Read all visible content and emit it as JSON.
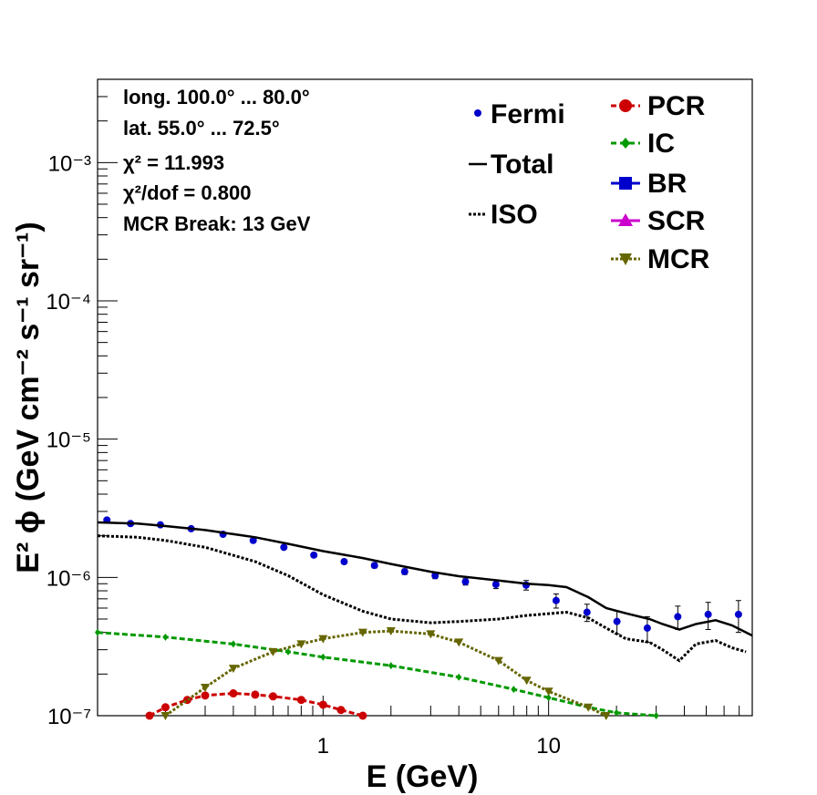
{
  "chart_data": {
    "type": "scatter",
    "xlabel": "E (GeV)",
    "ylabel": "E² ϕ (GeV cm⁻² s⁻¹ sr⁻¹)",
    "xscale": "log",
    "yscale": "log",
    "xlim": [
      0.1,
      80
    ],
    "ylim": [
      1e-07,
      0.004
    ],
    "x_tick_labels": [
      "1",
      "10"
    ],
    "y_tick_labels": [
      "10⁻⁷",
      "10⁻⁶",
      "10⁻⁵",
      "10⁻⁴",
      "10⁻³"
    ],
    "y_tick_values": [
      1e-07,
      1e-06,
      1e-05,
      0.0001,
      0.001
    ],
    "info_lines": [
      "long. 100.0° ... 80.0°",
      "lat. 55.0° ... 72.5°",
      "χ² = 11.993",
      "χ²/dof = 0.800",
      "MCR Break: 13 GeV"
    ],
    "legend_left": [
      {
        "label": "Fermi",
        "color": "#0000cc",
        "style": "point"
      },
      {
        "label": "Total",
        "color": "#000000",
        "style": "solid"
      },
      {
        "label": "ISO",
        "color": "#000000",
        "style": "dotted"
      }
    ],
    "legend_right": [
      {
        "label": "PCR",
        "color": "#cc0000",
        "style": "circle"
      },
      {
        "label": "IC",
        "color": "#009900",
        "style": "diamond"
      },
      {
        "label": "BR",
        "color": "#0000cc",
        "style": "square"
      },
      {
        "label": "SCR",
        "color": "#cc00cc",
        "style": "triangle-up"
      },
      {
        "label": "MCR",
        "color": "#666600",
        "style": "triangle-down"
      }
    ],
    "series": [
      {
        "name": "Fermi",
        "color": "#0000cc",
        "style": "points",
        "x": [
          0.11,
          0.14,
          0.19,
          0.26,
          0.36,
          0.49,
          0.67,
          0.91,
          1.24,
          1.69,
          2.3,
          3.14,
          4.28,
          5.84,
          7.95,
          10.8,
          14.8,
          20.1,
          27.4,
          37.4,
          51,
          69.5
        ],
        "y": [
          2.6e-06,
          2.45e-06,
          2.4e-06,
          2.25e-06,
          2.05e-06,
          1.85e-06,
          1.65e-06,
          1.45e-06,
          1.3e-06,
          1.22e-06,
          1.1e-06,
          1.03e-06,
          9.3e-07,
          8.9e-07,
          8.8e-07,
          6.8e-07,
          5.6e-07,
          4.8e-07,
          4.3e-07,
          5.2e-07,
          5.4e-07,
          5.4e-07
        ],
        "yerr": [
          5e-08,
          5e-08,
          5e-08,
          5e-08,
          5e-08,
          5e-08,
          5e-08,
          5e-08,
          5e-08,
          5e-08,
          5e-08,
          5e-08,
          5e-08,
          6e-08,
          7e-08,
          8e-08,
          8e-08,
          9e-08,
          9e-08,
          1e-07,
          1.2e-07,
          1.4e-07
        ]
      },
      {
        "name": "Total",
        "color": "#000000",
        "style": "solid",
        "x": [
          0.1,
          0.15,
          0.2,
          0.3,
          0.5,
          0.7,
          1,
          1.5,
          2,
          3,
          4,
          6,
          8,
          10,
          12,
          15,
          18,
          22,
          28,
          32,
          38,
          45,
          55,
          65,
          80
        ],
        "y": [
          2.5e-06,
          2.45e-06,
          2.35e-06,
          2.2e-06,
          1.95e-06,
          1.75e-06,
          1.55e-06,
          1.38e-06,
          1.25e-06,
          1.1e-06,
          1.02e-06,
          9.5e-07,
          9e-07,
          8.8e-07,
          8.5e-07,
          7.2e-07,
          6e-07,
          5.5e-07,
          5e-07,
          4.6e-07,
          4.2e-07,
          4.6e-07,
          4.9e-07,
          4.5e-07,
          3.8e-07
        ]
      },
      {
        "name": "ISO",
        "color": "#000000",
        "style": "dotted",
        "x": [
          0.1,
          0.15,
          0.2,
          0.3,
          0.5,
          0.7,
          1,
          1.5,
          2,
          3,
          4,
          6,
          8,
          12,
          15,
          18,
          22,
          28,
          32,
          38,
          45,
          55,
          65,
          75
        ],
        "y": [
          2e-06,
          1.95e-06,
          1.85e-06,
          1.65e-06,
          1.3e-06,
          1.03e-06,
          7.5e-07,
          5.7e-07,
          5e-07,
          4.7e-07,
          4.8e-07,
          5e-07,
          5.3e-07,
          5.6e-07,
          5.1e-07,
          4.3e-07,
          3.6e-07,
          3.4e-07,
          3e-07,
          2.5e-07,
          3.3e-07,
          3.5e-07,
          3.1e-07,
          2.9e-07
        ]
      },
      {
        "name": "IC",
        "color": "#009900",
        "style": "dashed-diamond",
        "x": [
          0.1,
          0.2,
          0.4,
          0.7,
          1,
          2,
          4,
          7,
          10,
          15,
          20,
          30
        ],
        "y": [
          4e-07,
          3.7e-07,
          3.3e-07,
          2.9e-07,
          2.65e-07,
          2.3e-07,
          1.9e-07,
          1.55e-07,
          1.35e-07,
          1.15e-07,
          1.05e-07,
          1e-07
        ]
      },
      {
        "name": "PCR",
        "color": "#cc0000",
        "style": "dashed-circle",
        "x": [
          0.17,
          0.2,
          0.25,
          0.3,
          0.4,
          0.5,
          0.6,
          0.8,
          1,
          1.2,
          1.5
        ],
        "y": [
          1e-07,
          1.15e-07,
          1.3e-07,
          1.4e-07,
          1.45e-07,
          1.42e-07,
          1.38e-07,
          1.3e-07,
          1.2e-07,
          1.1e-07,
          1e-07
        ]
      },
      {
        "name": "MCR",
        "color": "#666600",
        "style": "dotted-triangle-down",
        "x": [
          0.2,
          0.3,
          0.4,
          0.6,
          0.8,
          1,
          1.5,
          2,
          3,
          4,
          6,
          8,
          10,
          15,
          18
        ],
        "y": [
          1e-07,
          1.6e-07,
          2.2e-07,
          2.9e-07,
          3.3e-07,
          3.6e-07,
          4e-07,
          4.1e-07,
          3.9e-07,
          3.4e-07,
          2.5e-07,
          1.8e-07,
          1.5e-07,
          1.15e-07,
          1e-07
        ]
      }
    ]
  }
}
